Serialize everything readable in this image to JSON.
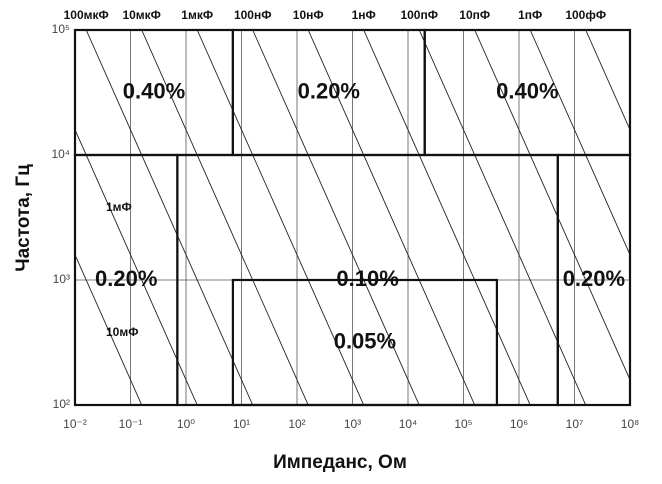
{
  "chart_data": {
    "type": "region",
    "x_label": "Импеданс, Ом",
    "y_label": "Частота, Гц",
    "log_x": true,
    "log_y": true,
    "grid": true,
    "xlim": [
      0.01,
      100000000
    ],
    "ylim": [
      100,
      100000
    ],
    "xticks": [
      {
        "value": 0.01,
        "label": "10⁻²"
      },
      {
        "value": 0.1,
        "label": "10⁻¹"
      },
      {
        "value": 1,
        "label": "10⁰"
      },
      {
        "value": 10,
        "label": "10¹"
      },
      {
        "value": 100,
        "label": "10²"
      },
      {
        "value": 1000,
        "label": "10³"
      },
      {
        "value": 10000,
        "label": "10⁴"
      },
      {
        "value": 100000,
        "label": "10⁵"
      },
      {
        "value": 1000000,
        "label": "10⁶"
      },
      {
        "value": 10000000,
        "label": "10⁷"
      },
      {
        "value": 100000000,
        "label": "10⁸"
      }
    ],
    "yticks": [
      {
        "value": 100,
        "label": "10²"
      },
      {
        "value": 1000,
        "label": "10³"
      },
      {
        "value": 10000,
        "label": "10⁴"
      },
      {
        "value": 100000,
        "label": "10⁵"
      }
    ],
    "regions": [
      {
        "label": "0.40%",
        "value": 0.4,
        "x": [
          0.01,
          7
        ],
        "y": [
          10000,
          100000
        ]
      },
      {
        "label": "0.20%",
        "value": 0.2,
        "x": [
          7,
          20000
        ],
        "y": [
          10000,
          100000
        ]
      },
      {
        "label": "0.40%",
        "value": 0.4,
        "x": [
          20000,
          100000000
        ],
        "y": [
          10000,
          100000
        ]
      },
      {
        "label": "0.20%",
        "value": 0.2,
        "x": [
          0.01,
          0.7
        ],
        "y": [
          100,
          10000
        ]
      },
      {
        "label": "0.10%",
        "value": 0.1,
        "x": [
          0.7,
          5000000
        ],
        "y": [
          100,
          10000
        ]
      },
      {
        "label": "0.20%",
        "value": 0.2,
        "x": [
          5000000,
          100000000
        ],
        "y": [
          100,
          10000
        ]
      },
      {
        "label": "0.05%",
        "value": 0.05,
        "x": [
          7,
          400000
        ],
        "y": [
          100,
          1000
        ]
      }
    ],
    "capacitance_lines": {
      "labels": [
        "10мФ",
        "1мФ",
        "100мкФ",
        "10мкФ",
        "1мкФ",
        "100нФ",
        "10нФ",
        "1нФ",
        "100пФ",
        "10пФ",
        "1пФ",
        "100фФ"
      ],
      "values": [
        0.01,
        0.001,
        0.0001,
        1e-05,
        1e-06,
        1e-07,
        1e-08,
        1e-09,
        1e-10,
        1e-11,
        1e-12,
        1e-13
      ]
    }
  }
}
